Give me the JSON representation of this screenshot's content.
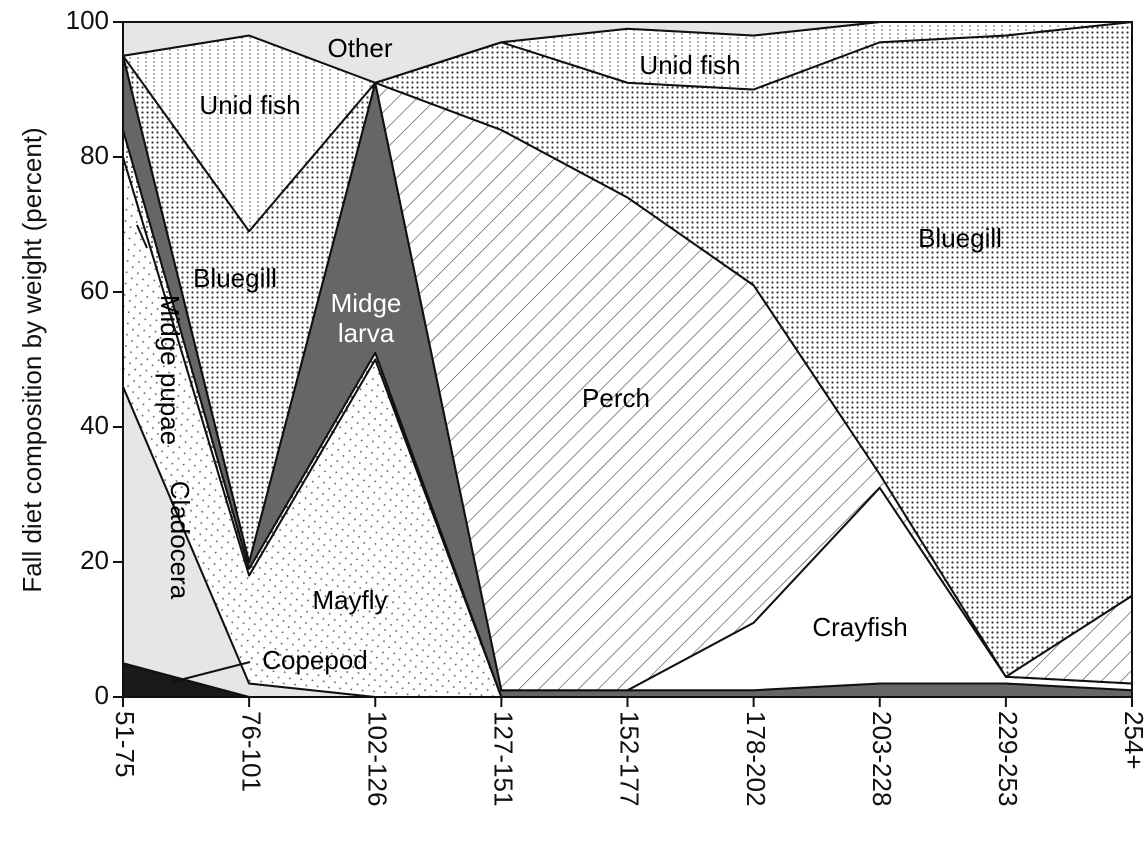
{
  "chart_data": {
    "type": "stacked_area",
    "y_label": "Fall diet composition by weight (percent)",
    "categories": [
      "51-75",
      "76-101",
      "102-126",
      "127-151",
      "152-177",
      "178-202",
      "203-228",
      "229-253",
      "254+"
    ],
    "ylim": [
      0,
      100
    ],
    "yticks": [
      0,
      20,
      40,
      60,
      80,
      100
    ],
    "series": [
      {
        "name": "Copepod",
        "color": "#1a1a1a",
        "values": [
          5,
          0,
          0,
          0,
          0,
          0,
          0,
          0,
          0
        ]
      },
      {
        "name": "Cladocera",
        "color": "#e6e6e6",
        "values": [
          41,
          2,
          0,
          0,
          0,
          0,
          0,
          0,
          0
        ]
      },
      {
        "name": "Mayfly",
        "color": "#ffffff",
        "values": [
          34,
          16,
          50,
          0,
          0,
          0,
          0,
          0,
          0
        ]
      },
      {
        "name": "Midge pupae",
        "color": "#ffffff",
        "values": [
          4,
          1,
          1,
          0,
          0,
          0,
          0,
          0,
          0
        ]
      },
      {
        "name": "Midge larva",
        "color": "#666666",
        "values": [
          11,
          1,
          40,
          1,
          1,
          1,
          2,
          2,
          1
        ]
      },
      {
        "name": "Crayfish",
        "color": "#ffffff",
        "values": [
          0,
          0,
          0,
          0,
          0,
          10,
          29,
          1,
          1
        ]
      },
      {
        "name": "Perch",
        "color": "#ffffff",
        "values": [
          0,
          0,
          0,
          83,
          73,
          50,
          2,
          0,
          13
        ]
      },
      {
        "name": "Bluegill",
        "color": "#ffffff",
        "values": [
          0,
          49,
          0,
          13,
          17,
          29,
          64,
          95,
          85
        ]
      },
      {
        "name": "Unid fish",
        "color": "#ffffff",
        "values": [
          0,
          29,
          0,
          0,
          8,
          8,
          3,
          2,
          0
        ]
      },
      {
        "name": "Other",
        "color": "#e6e6e6",
        "values": [
          5,
          2,
          9,
          3,
          1,
          2,
          0,
          0,
          0
        ]
      }
    ]
  }
}
